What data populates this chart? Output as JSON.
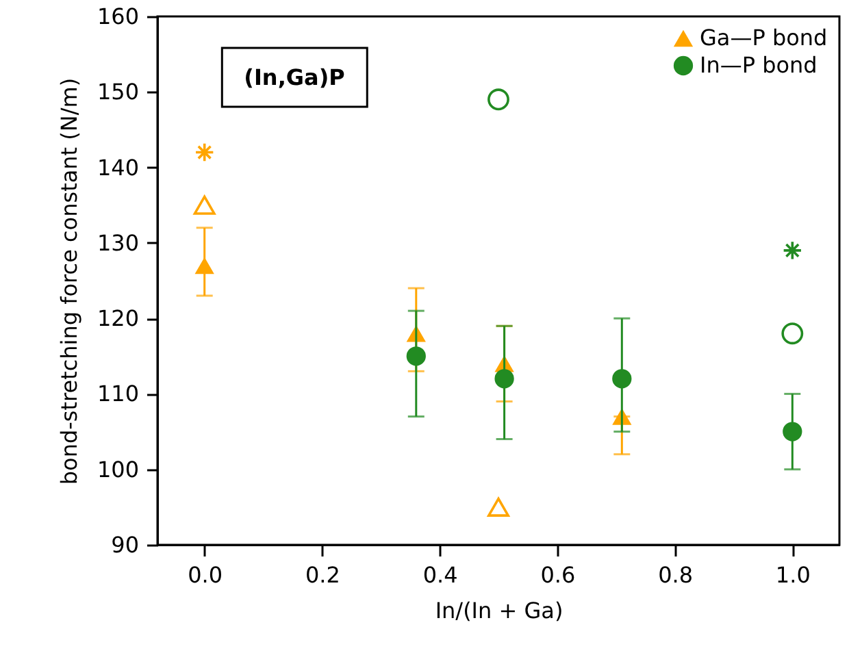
{
  "chart_data": {
    "type": "scatter",
    "xlabel": "In/(In + Ga)",
    "ylabel": "bond-stretching force constant (N/m)",
    "xlim": [
      -0.08,
      1.08
    ],
    "xticks": [
      {
        "value": 0,
        "label": "0.0"
      },
      {
        "value": 0.2,
        "label": "0.2"
      },
      {
        "value": 0.4,
        "label": "0.4"
      },
      {
        "value": 0.6,
        "label": "0.6"
      },
      {
        "value": 0.8,
        "label": "0.8"
      },
      {
        "value": 1,
        "label": "1.0"
      }
    ],
    "ylim": [
      90,
      160
    ],
    "yticks": [
      90,
      100,
      110,
      120,
      130,
      140,
      150,
      160
    ],
    "grid": false,
    "legend": "top right",
    "annotations": [
      "(In,Ga)P"
    ],
    "series": [
      {
        "name": "Ga—P bond",
        "color": "#ffa500",
        "marker": "triangle",
        "x": [
          0,
          0.36,
          0.51,
          0.71
        ],
        "values": [
          127,
          118,
          114,
          107
        ],
        "errors": [
          [
            123,
            132
          ],
          [
            113,
            124
          ],
          [
            109,
            119
          ],
          [
            102,
            107
          ]
        ]
      },
      {
        "name": "In—P bond",
        "color": "#228b22",
        "marker": "circle",
        "x": [
          0.36,
          0.51,
          0.71,
          1
        ],
        "values": [
          115,
          112,
          112,
          105
        ],
        "errors": [
          [
            107,
            121
          ],
          [
            104,
            119
          ],
          [
            105,
            120
          ],
          [
            100,
            110
          ]
        ]
      },
      {
        "color": "#ffa500",
        "marker": "triangle",
        "x": [
          0,
          0.5
        ],
        "values": [
          135,
          95
        ]
      },
      {
        "color": "#ffa500",
        "marker": "cross",
        "x": [
          0
        ],
        "values": [
          142
        ]
      },
      {
        "color": "#228b22",
        "marker": "circle",
        "x": [
          0.5,
          1
        ],
        "values": [
          149,
          118
        ]
      },
      {
        "color": "#228b22",
        "marker": "cross",
        "x": [
          1
        ],
        "values": [
          129
        ]
      }
    ]
  }
}
